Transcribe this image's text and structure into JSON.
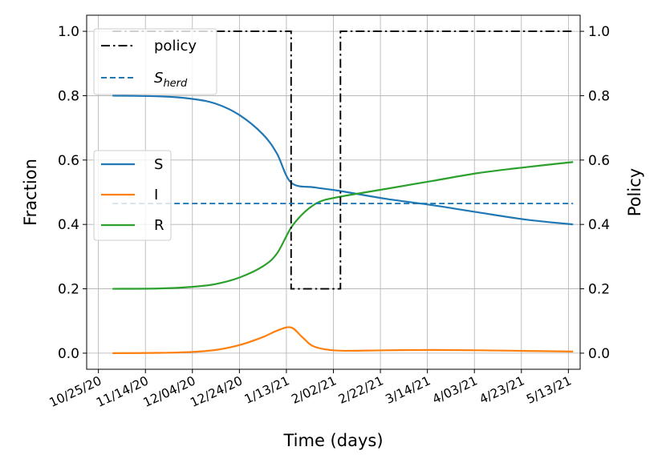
{
  "chart_data": {
    "type": "line",
    "xlabel": "Time (days)",
    "ylabel_left": "Fraction",
    "ylabel_right": "Policy",
    "ylim_left": [
      -0.05,
      1.05
    ],
    "ylim_right": [
      -0.05,
      1.05
    ],
    "xlim": [
      "10/20/20",
      "5/18/21"
    ],
    "grid": true,
    "x_ticks": [
      "10/25/20",
      "11/14/20",
      "12/04/20",
      "12/24/20",
      "1/13/21",
      "2/02/21",
      "2/22/21",
      "3/14/21",
      "4/03/21",
      "4/23/21",
      "5/13/21"
    ],
    "y_ticks_left": [
      "0.0",
      "0.2",
      "0.4",
      "0.6",
      "0.8",
      "1.0"
    ],
    "y_ticks_right": [
      "0.0",
      "0.2",
      "0.4",
      "0.6",
      "0.8",
      "1.0"
    ],
    "series": [
      {
        "name": "S",
        "axis": "left",
        "color": "#1f77b4",
        "style": "solid",
        "x": [
          "10/31/20",
          "11/20/20",
          "12/04/20",
          "12/14/20",
          "12/24/20",
          "1/03/21",
          "1/09/21",
          "1/15/21",
          "1/25/21",
          "2/04/21",
          "2/24/21",
          "3/16/21",
          "4/05/21",
          "4/25/21",
          "5/15/21"
        ],
        "values": [
          0.8,
          0.798,
          0.79,
          0.775,
          0.74,
          0.68,
          0.62,
          0.53,
          0.515,
          0.505,
          0.48,
          0.46,
          0.437,
          0.415,
          0.4
        ]
      },
      {
        "name": "I",
        "axis": "left",
        "color": "#ff7f0e",
        "style": "solid",
        "x": [
          "10/31/20",
          "11/20/20",
          "12/04/20",
          "12/14/20",
          "12/24/20",
          "1/03/21",
          "1/09/21",
          "1/15/21",
          "1/20/21",
          "1/25/21",
          "2/04/21",
          "2/24/21",
          "3/16/21",
          "4/05/21",
          "4/25/21",
          "5/15/21"
        ],
        "values": [
          0.0,
          0.001,
          0.004,
          0.01,
          0.025,
          0.05,
          0.07,
          0.08,
          0.048,
          0.02,
          0.008,
          0.009,
          0.01,
          0.009,
          0.007,
          0.005
        ]
      },
      {
        "name": "R",
        "axis": "left",
        "color": "#2ca02c",
        "style": "solid",
        "x": [
          "10/31/20",
          "11/20/20",
          "12/04/20",
          "12/14/20",
          "12/24/20",
          "1/03/21",
          "1/09/21",
          "1/15/21",
          "1/21/21",
          "1/27/21",
          "2/04/21",
          "2/24/21",
          "3/16/21",
          "4/05/21",
          "4/25/21",
          "5/15/21"
        ],
        "values": [
          0.2,
          0.201,
          0.206,
          0.215,
          0.235,
          0.27,
          0.31,
          0.39,
          0.44,
          0.47,
          0.485,
          0.51,
          0.535,
          0.56,
          0.578,
          0.594
        ]
      },
      {
        "name": "policy",
        "axis": "right",
        "color": "#000000",
        "style": "dashdot",
        "x": [
          "10/31/20",
          "1/15/21",
          "1/15/21",
          "2/05/21",
          "2/05/21",
          "5/15/21"
        ],
        "values": [
          1.0,
          1.0,
          0.2,
          0.2,
          1.0,
          1.0
        ]
      },
      {
        "name": "S_herd",
        "label_main": "S",
        "label_sub": "herd",
        "axis": "left",
        "color": "#1f77b4",
        "style": "dashed",
        "x": [
          "10/31/20",
          "5/15/21"
        ],
        "values": [
          0.465,
          0.465
        ]
      }
    ]
  }
}
